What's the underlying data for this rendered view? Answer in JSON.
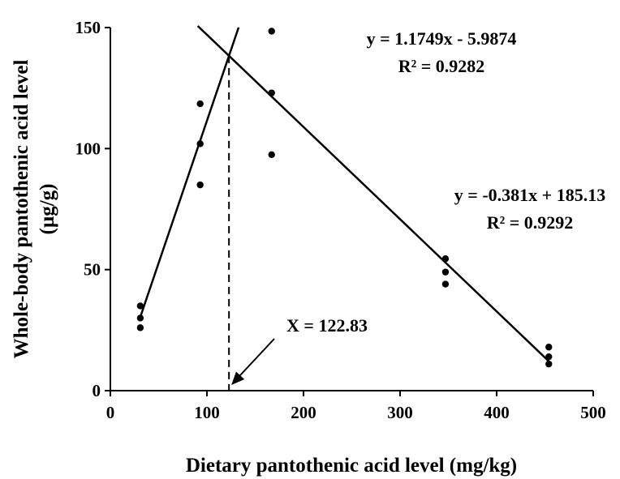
{
  "chart_data": {
    "type": "scatter",
    "xlabel": "Dietary pantothenic acid level (mg/kg)",
    "ylabel_line1": "Whole-body pantothenic acid level",
    "ylabel_line2": "(µg/g)",
    "xlim": [
      0,
      500
    ],
    "ylim": [
      0,
      150
    ],
    "xticks": [
      "0",
      "100",
      "200",
      "300",
      "400",
      "500"
    ],
    "yticks": [
      "0",
      "50",
      "100",
      "150"
    ],
    "grid": false,
    "points": [
      {
        "x": 31,
        "y": 35
      },
      {
        "x": 31,
        "y": 30
      },
      {
        "x": 31,
        "y": 26
      },
      {
        "x": 93,
        "y": 118.5
      },
      {
        "x": 93,
        "y": 102
      },
      {
        "x": 93,
        "y": 85
      },
      {
        "x": 167,
        "y": 148.5
      },
      {
        "x": 167,
        "y": 123
      },
      {
        "x": 167,
        "y": 97.5
      },
      {
        "x": 347,
        "y": 54.5
      },
      {
        "x": 347,
        "y": 49
      },
      {
        "x": 347,
        "y": 44
      },
      {
        "x": 454,
        "y": 18
      },
      {
        "x": 454,
        "y": 14
      },
      {
        "x": 454,
        "y": 11
      }
    ],
    "regressions": [
      {
        "slope": 1.1749,
        "intercept": -5.9874,
        "x_from": 31,
        "x_to": 132.8,
        "equation": "y = 1.1749x - 5.9874",
        "r2": "R² = 0.9282"
      },
      {
        "slope": -0.381,
        "intercept": 185.13,
        "x_from": 90.5,
        "x_to": 454,
        "equation": "y = -0.381x + 185.13",
        "r2": "R² = 0.9292"
      }
    ],
    "breakpoint": {
      "x": 122.83,
      "label": "X = 122.83"
    }
  }
}
